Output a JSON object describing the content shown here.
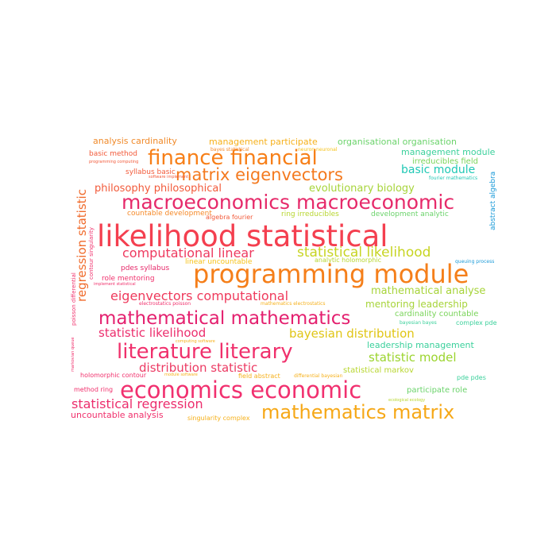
{
  "words": [
    {
      "text": "likelihood statistical",
      "color": "#f43f4f"
    },
    {
      "text": "programming module",
      "color": "#f57f1a"
    },
    {
      "text": "macroeconomics macroeconomic",
      "color": "#e62a6a"
    },
    {
      "text": "economics economic",
      "color": "#f1306f"
    },
    {
      "text": "finance financial",
      "color": "#f77f18"
    },
    {
      "text": "mathematics matrix",
      "color": "#f6a817"
    },
    {
      "text": "literature literary",
      "color": "#f0306c"
    },
    {
      "text": "mathematical mathematics",
      "color": "#e4206f"
    },
    {
      "text": "matrix eigenvectors",
      "color": "#f47a1f"
    },
    {
      "text": "computational linear",
      "color": "#ee3a5f"
    },
    {
      "text": "statistical likelihood",
      "color": "#c7d422"
    },
    {
      "text": "eigenvectors computational",
      "color": "#ef3a5c"
    },
    {
      "text": "statistical regression",
      "color": "#ec2e6d"
    },
    {
      "text": "distribution statistic",
      "color": "#ec3a63"
    },
    {
      "text": "statistic likelihood",
      "color": "#ec2e6d"
    },
    {
      "text": "bayesian distribution",
      "color": "#e0c515"
    },
    {
      "text": "statistic model",
      "color": "#9bd42d"
    },
    {
      "text": "regression statistic",
      "color": "#f06a2a"
    },
    {
      "text": "philosophy philosophical",
      "color": "#f25a3a"
    },
    {
      "text": "evolutionary biology",
      "color": "#a7d43a"
    },
    {
      "text": "basic module",
      "color": "#20c8b5"
    },
    {
      "text": "mathematical analyse",
      "color": "#a7d43a"
    },
    {
      "text": "mentoring leadership",
      "color": "#a7d43a"
    },
    {
      "text": "analysis cardinality",
      "color": "#f08a2a"
    },
    {
      "text": "management participate",
      "color": "#f6b01a"
    },
    {
      "text": "organisational organisation",
      "color": "#6bd36b"
    },
    {
      "text": "management module",
      "color": "#3ad09b"
    },
    {
      "text": "irreducibles field",
      "color": "#7ad45a"
    },
    {
      "text": "uncountable analysis",
      "color": "#f0306c"
    },
    {
      "text": "leadership management",
      "color": "#3ad09b"
    },
    {
      "text": "statistical markov",
      "color": "#b8d630"
    },
    {
      "text": "participate role",
      "color": "#6bd36b"
    },
    {
      "text": "cardinality countable",
      "color": "#7ad45a"
    },
    {
      "text": "role mentoring",
      "color": "#f0306c"
    },
    {
      "text": "pdes syllabus",
      "color": "#e62a6a"
    },
    {
      "text": "syllabus basic",
      "color": "#f25a3a"
    },
    {
      "text": "basic method",
      "color": "#f25a3a"
    },
    {
      "text": "linear uncountable",
      "color": "#f6c21a"
    },
    {
      "text": "countable development",
      "color": "#f58a2a"
    },
    {
      "text": "ring irreducibles",
      "color": "#b8d630"
    },
    {
      "text": "development analytic",
      "color": "#6bd36b"
    },
    {
      "text": "analytic holomorphic",
      "color": "#b8d630"
    },
    {
      "text": "algebra fourier",
      "color": "#f25a3a"
    },
    {
      "text": "holomorphic contour",
      "color": "#f0306c"
    },
    {
      "text": "method ring",
      "color": "#f0306c"
    },
    {
      "text": "singularity complex",
      "color": "#f6b01a"
    },
    {
      "text": "field abstract",
      "color": "#f6b01a"
    },
    {
      "text": "pde pdes",
      "color": "#3ad09b"
    },
    {
      "text": "complex pde",
      "color": "#3ad09b"
    },
    {
      "text": "bayesian bayes",
      "color": "#3ad09b"
    },
    {
      "text": "queuing process",
      "color": "#1a9ad8"
    },
    {
      "text": "abstract algebra",
      "color": "#1a9ad8"
    },
    {
      "text": "fourier mathematics",
      "color": "#20c8b5"
    },
    {
      "text": "bayes statistical",
      "color": "#f58a2a"
    },
    {
      "text": "neuron neuronal",
      "color": "#f6c21a"
    },
    {
      "text": "programming computing",
      "color": "#f25a3a"
    },
    {
      "text": "electrostatics poisson",
      "color": "#f0306c"
    },
    {
      "text": "mathematics electrostatics",
      "color": "#f6b01a"
    },
    {
      "text": "differential bayesian",
      "color": "#f6b01a"
    },
    {
      "text": "implement statistical",
      "color": "#f0306c"
    },
    {
      "text": "contour singularity",
      "color": "#f0306c"
    },
    {
      "text": "poisson differential",
      "color": "#f0306c"
    },
    {
      "text": "computing software",
      "color": "#f6b01a"
    },
    {
      "text": "module software",
      "color": "#f6b01a"
    },
    {
      "text": "ecological ecology",
      "color": "#b8d630"
    },
    {
      "text": "software implement",
      "color": "#f25a3a"
    },
    {
      "text": "markovian queue",
      "color": "#f0306c"
    }
  ]
}
